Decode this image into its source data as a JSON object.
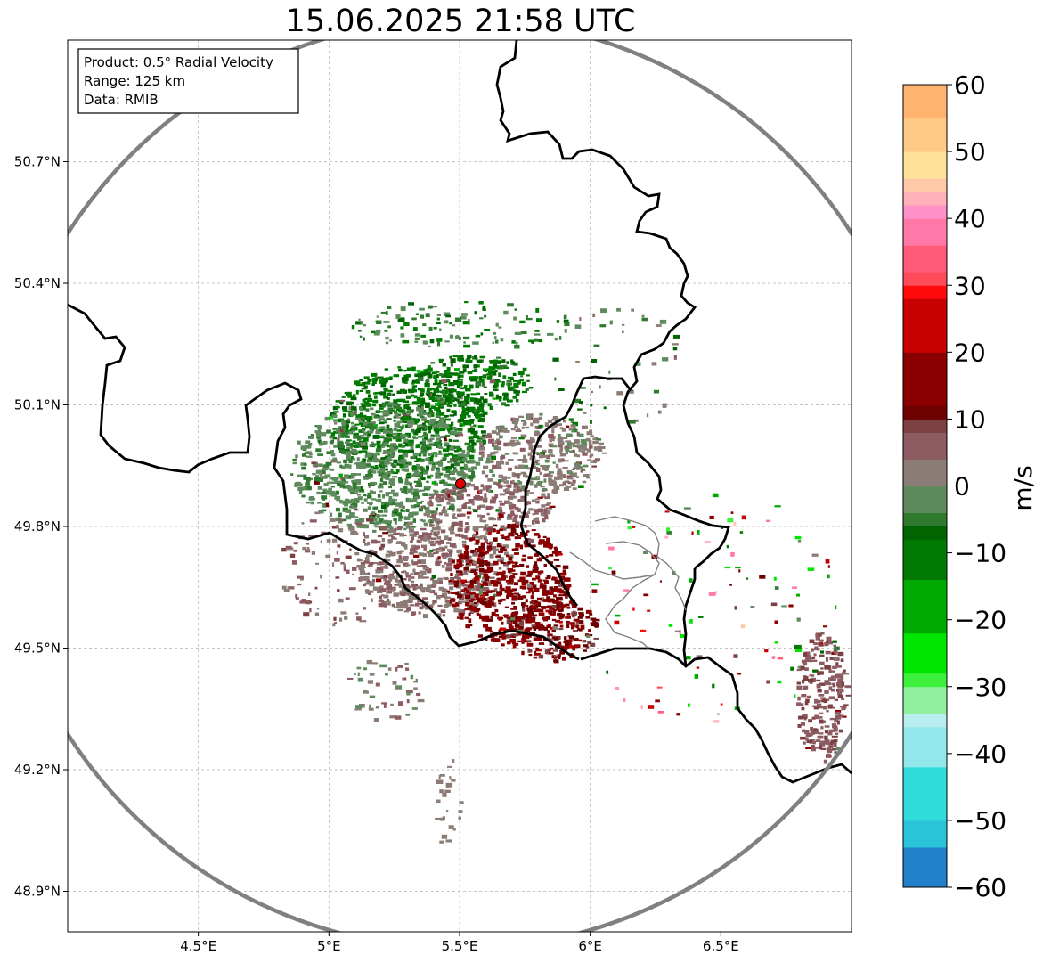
{
  "title": "15.06.2025 21:58 UTC",
  "info_box": {
    "lines": [
      "Product: 0.5° Radial Velocity",
      "Range: 125 km",
      "Data: RMIB"
    ]
  },
  "colors": {
    "range_ring": "#808080",
    "border": "#000000",
    "subborder": "#808080",
    "grid": "#b0b0b0",
    "radar_site": "#e00000"
  },
  "chart_data": {
    "type": "heatmap",
    "title": "15.06.2025 21:58 UTC",
    "xlabel": "",
    "ylabel": "",
    "x_ticks": [
      4.5,
      5.0,
      5.5,
      6.0,
      6.5
    ],
    "x_tick_labels": [
      "4.5°E",
      "5°E",
      "5.5°E",
      "6°E",
      "6.5°E"
    ],
    "y_ticks": [
      48.9,
      49.2,
      49.5,
      49.8,
      50.1,
      50.4,
      50.7
    ],
    "y_tick_labels": [
      "48.9°N",
      "49.2°N",
      "49.5°N",
      "49.8°N",
      "50.1°N",
      "50.4°N",
      "50.7°N"
    ],
    "xlim": [
      4.0,
      7.0
    ],
    "ylim": [
      48.8,
      51.0
    ],
    "grid": true,
    "radar_site": {
      "lon": 5.505,
      "lat": 49.914
    },
    "range_km": 125,
    "colorbar": {
      "label": "m/s",
      "ticks": [
        60,
        50,
        40,
        30,
        20,
        10,
        0,
        -10,
        -20,
        -30,
        -40,
        -50,
        -60
      ],
      "tick_labels": [
        "60",
        "50",
        "40",
        "30",
        "20",
        "10",
        "0",
        "−10",
        "−20",
        "−30",
        "−40",
        "−50",
        "−60"
      ],
      "range": [
        -60,
        60
      ],
      "stops": [
        {
          "v": 60,
          "c": "#ff9e5e"
        },
        {
          "v": 55,
          "c": "#ffb36e"
        },
        {
          "v": 50,
          "c": "#ffcb84"
        },
        {
          "v": 46,
          "c": "#ffe29a"
        },
        {
          "v": 44,
          "c": "#ffc9a8"
        },
        {
          "v": 42,
          "c": "#ffb0b8"
        },
        {
          "v": 40,
          "c": "#ff90c8"
        },
        {
          "v": 36,
          "c": "#ff78a8"
        },
        {
          "v": 32,
          "c": "#ff5a78"
        },
        {
          "v": 30,
          "c": "#ff4a5a"
        },
        {
          "v": 28,
          "c": "#ff0a0a"
        },
        {
          "v": 20,
          "c": "#c80000"
        },
        {
          "v": 12,
          "c": "#8a0000"
        },
        {
          "v": 10,
          "c": "#6e0000"
        },
        {
          "v": 8,
          "c": "#7c4042"
        },
        {
          "v": 4,
          "c": "#8c5c62"
        },
        {
          "v": 0,
          "c": "#8c7c76"
        },
        {
          "v": -4,
          "c": "#5e8a5e"
        },
        {
          "v": -6,
          "c": "#2f7a2f"
        },
        {
          "v": -8,
          "c": "#006400"
        },
        {
          "v": -14,
          "c": "#007a00"
        },
        {
          "v": -22,
          "c": "#00aa00"
        },
        {
          "v": -28,
          "c": "#00e600"
        },
        {
          "v": -30,
          "c": "#3cf03c"
        },
        {
          "v": -34,
          "c": "#90f0a0"
        },
        {
          "v": -36,
          "c": "#b8eef0"
        },
        {
          "v": -42,
          "c": "#90e8ea"
        },
        {
          "v": -50,
          "c": "#30dcdc"
        },
        {
          "v": -54,
          "c": "#2ac4d8"
        },
        {
          "v": -60,
          "c": "#2080c8"
        }
      ]
    },
    "echo_regions": [
      {
        "lon": 5.3,
        "lat": 50.06,
        "rlon": 0.3,
        "rlat": 0.14,
        "v": -9
      },
      {
        "lon": 5.55,
        "lat": 50.16,
        "rlon": 0.22,
        "rlat": 0.07,
        "v": -8
      },
      {
        "lon": 5.2,
        "lat": 49.95,
        "rlon": 0.35,
        "rlat": 0.16,
        "v": -3
      },
      {
        "lon": 5.8,
        "lat": 49.98,
        "rlon": 0.25,
        "rlat": 0.1,
        "v": 2
      },
      {
        "lon": 5.6,
        "lat": 49.85,
        "rlon": 0.25,
        "rlat": 0.06,
        "v": 5
      },
      {
        "lon": 5.4,
        "lat": 49.7,
        "rlon": 0.3,
        "rlat": 0.12,
        "v": 4
      },
      {
        "lon": 5.68,
        "lat": 49.66,
        "rlon": 0.23,
        "rlat": 0.15,
        "v": 13
      },
      {
        "lon": 5.85,
        "lat": 49.55,
        "rlon": 0.18,
        "rlat": 0.08,
        "v": 12
      },
      {
        "lon": 6.88,
        "lat": 49.38,
        "rlon": 0.1,
        "rlat": 0.16,
        "v": 7
      }
    ],
    "scatter_clusters": [
      {
        "lon": 5.2,
        "lat": 49.4,
        "rlon": 0.15,
        "rlat": 0.08,
        "n": 50,
        "vmin": -2,
        "vmax": 6
      },
      {
        "lon": 5.05,
        "lat": 49.7,
        "rlon": 0.25,
        "rlat": 0.15,
        "n": 120,
        "vmin": 0,
        "vmax": 9
      },
      {
        "lon": 6.45,
        "lat": 49.6,
        "rlon": 0.5,
        "rlat": 0.3,
        "n": 110,
        "vmin": -30,
        "vmax": 45
      },
      {
        "lon": 6.1,
        "lat": 50.2,
        "rlon": 0.25,
        "rlat": 0.15,
        "n": 50,
        "vmin": -8,
        "vmax": 6
      },
      {
        "lon": 5.5,
        "lat": 50.3,
        "rlon": 0.45,
        "rlat": 0.06,
        "n": 120,
        "vmin": -10,
        "vmax": 0
      },
      {
        "lon": 5.45,
        "lat": 49.12,
        "rlon": 0.05,
        "rlat": 0.12,
        "n": 25,
        "vmin": 0,
        "vmax": 3
      }
    ]
  }
}
